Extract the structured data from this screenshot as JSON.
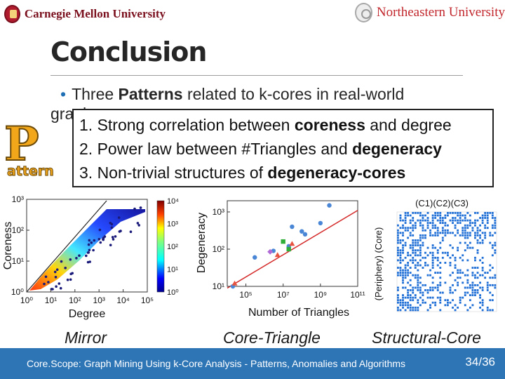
{
  "header": {
    "left_logo": "Carnegie Mellon University",
    "right_logo": "Northeastern University"
  },
  "slide": {
    "title": "Conclusion",
    "bullet": {
      "lead": "Three ",
      "bold": "Patterns",
      "rest": " related to k-cores in real-world",
      "wrap": "graphs"
    },
    "patterns": [
      {
        "pre": "1. Strong correlation between ",
        "bold": "coreness",
        "post": " and degree"
      },
      {
        "pre": "2. Power law between #Triangles and ",
        "bold": "degeneracy",
        "post": ""
      },
      {
        "pre": "3. Non-trivial structures of ",
        "bold": "degeneracy-cores",
        "post": ""
      }
    ],
    "logo_letters": {
      "big": "P",
      "small": "attern"
    }
  },
  "figures": {
    "mirror": {
      "caption": "Mirror",
      "xlabel": "Degree",
      "ylabel": "Coreness",
      "x_ticks": [
        "10⁰",
        "10¹",
        "10²",
        "10³",
        "10⁴",
        "10⁵"
      ],
      "y_ticks": [
        "10⁰",
        "10¹",
        "10²",
        "10³"
      ],
      "colorbar_ticks": [
        "10⁰",
        "10¹",
        "10²",
        "10³",
        "10⁴"
      ]
    },
    "core_triangle": {
      "caption": "Core-Triangle",
      "xlabel": "Number of Triangles",
      "ylabel": "Degeneracy",
      "x_ticks": [
        "10⁵",
        "10⁷",
        "10⁹",
        "10¹¹"
      ],
      "y_ticks": [
        "10¹",
        "10²",
        "10³"
      ]
    },
    "structural_core": {
      "caption": "Structural-Core",
      "top_label": "(C1)(C2)(C3)",
      "side_label": "(Periphery)  (Core)"
    }
  },
  "chart_data": [
    {
      "type": "scatter",
      "title": "Mirror",
      "xlabel": "Degree",
      "ylabel": "Coreness",
      "x_scale": "log",
      "y_scale": "log",
      "xlim": [
        1,
        100000
      ],
      "ylim": [
        1,
        1000
      ],
      "colorbar": {
        "scale": "log",
        "range": [
          1,
          10000
        ]
      }
    },
    {
      "type": "scatter",
      "title": "Core-Triangle",
      "xlabel": "Number of Triangles",
      "ylabel": "Degeneracy",
      "x_scale": "log",
      "y_scale": "log",
      "xlim": [
        10000,
        100000000000
      ],
      "ylim": [
        10,
        2000
      ],
      "series": [
        {
          "marker": "circle",
          "color": "#4a86d6",
          "points": [
            [
              20000,
              10
            ],
            [
              300000,
              60
            ],
            [
              3000000,
              90
            ],
            [
              20000000,
              120
            ],
            [
              30000000,
              400
            ],
            [
              100000000,
              300
            ],
            [
              150000000,
              250
            ],
            [
              1000000000,
              500
            ],
            [
              3000000000,
              1500
            ]
          ]
        },
        {
          "marker": "triangle",
          "color": "#e8533f",
          "points": [
            [
              25000,
              12
            ],
            [
              5000000,
              70
            ],
            [
              30000000,
              140
            ]
          ]
        },
        {
          "marker": "square",
          "color": "#2fae3a",
          "points": [
            [
              10000000,
              160
            ],
            [
              20000000,
              100
            ]
          ]
        },
        {
          "marker": "diamond",
          "color": "#b06ad6",
          "points": [
            [
              2000000,
              85
            ]
          ]
        }
      ],
      "fit_line": {
        "color": "#d42a2a",
        "from": [
          10000,
          9
        ],
        "to": [
          100000000000,
          1100
        ]
      }
    },
    {
      "type": "heatmap",
      "title": "Structural-Core",
      "description_labels": [
        "(C1)(C2)(C3)",
        "(Periphery)  (Core)"
      ]
    }
  ],
  "footer": {
    "text": "Core.Scope: Graph Mining Using k-Core Analysis - Patterns, Anomalies and Algorithms",
    "page": "34",
    "total": "36"
  },
  "colors": {
    "footer_bg": "#2e75b6",
    "title": "#262626",
    "logo_orange": "#f2a71b"
  }
}
